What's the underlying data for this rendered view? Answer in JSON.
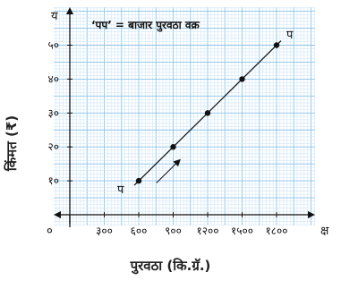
{
  "chart_data": {
    "type": "line",
    "title": "‘पप’ = बाजार पुरवठा वक्र",
    "xlabel": "पुरवठा (कि.ग्रॅ.)",
    "ylabel": "किंमत (₹)",
    "x_axis_letter": "क्ष",
    "y_axis_letter": "य",
    "origin_label": "०",
    "curve_start_label": "प",
    "curve_end_label": "प",
    "x_ticks": [
      {
        "value": 300,
        "label": "३००"
      },
      {
        "value": 600,
        "label": "६००"
      },
      {
        "value": 900,
        "label": "९००"
      },
      {
        "value": 1200,
        "label": "१२००"
      },
      {
        "value": 1500,
        "label": "१५००"
      },
      {
        "value": 1800,
        "label": "१८००"
      }
    ],
    "y_ticks": [
      {
        "value": 10,
        "label": "१०"
      },
      {
        "value": 20,
        "label": "२०"
      },
      {
        "value": 30,
        "label": "३०"
      },
      {
        "value": 40,
        "label": "४०"
      },
      {
        "value": 50,
        "label": "५०"
      }
    ],
    "series": [
      {
        "x": [
          600,
          900,
          1200,
          1500,
          1800
        ],
        "y": [
          10,
          20,
          30,
          40,
          50
        ]
      }
    ],
    "xlim": [
      0,
      2100
    ],
    "ylim": [
      0,
      60
    ],
    "grid": true,
    "colors": {
      "grid_minor": "#cfe6f7",
      "grid_major": "#8cc4ea",
      "axis": "#111111",
      "line": "#111111"
    }
  }
}
